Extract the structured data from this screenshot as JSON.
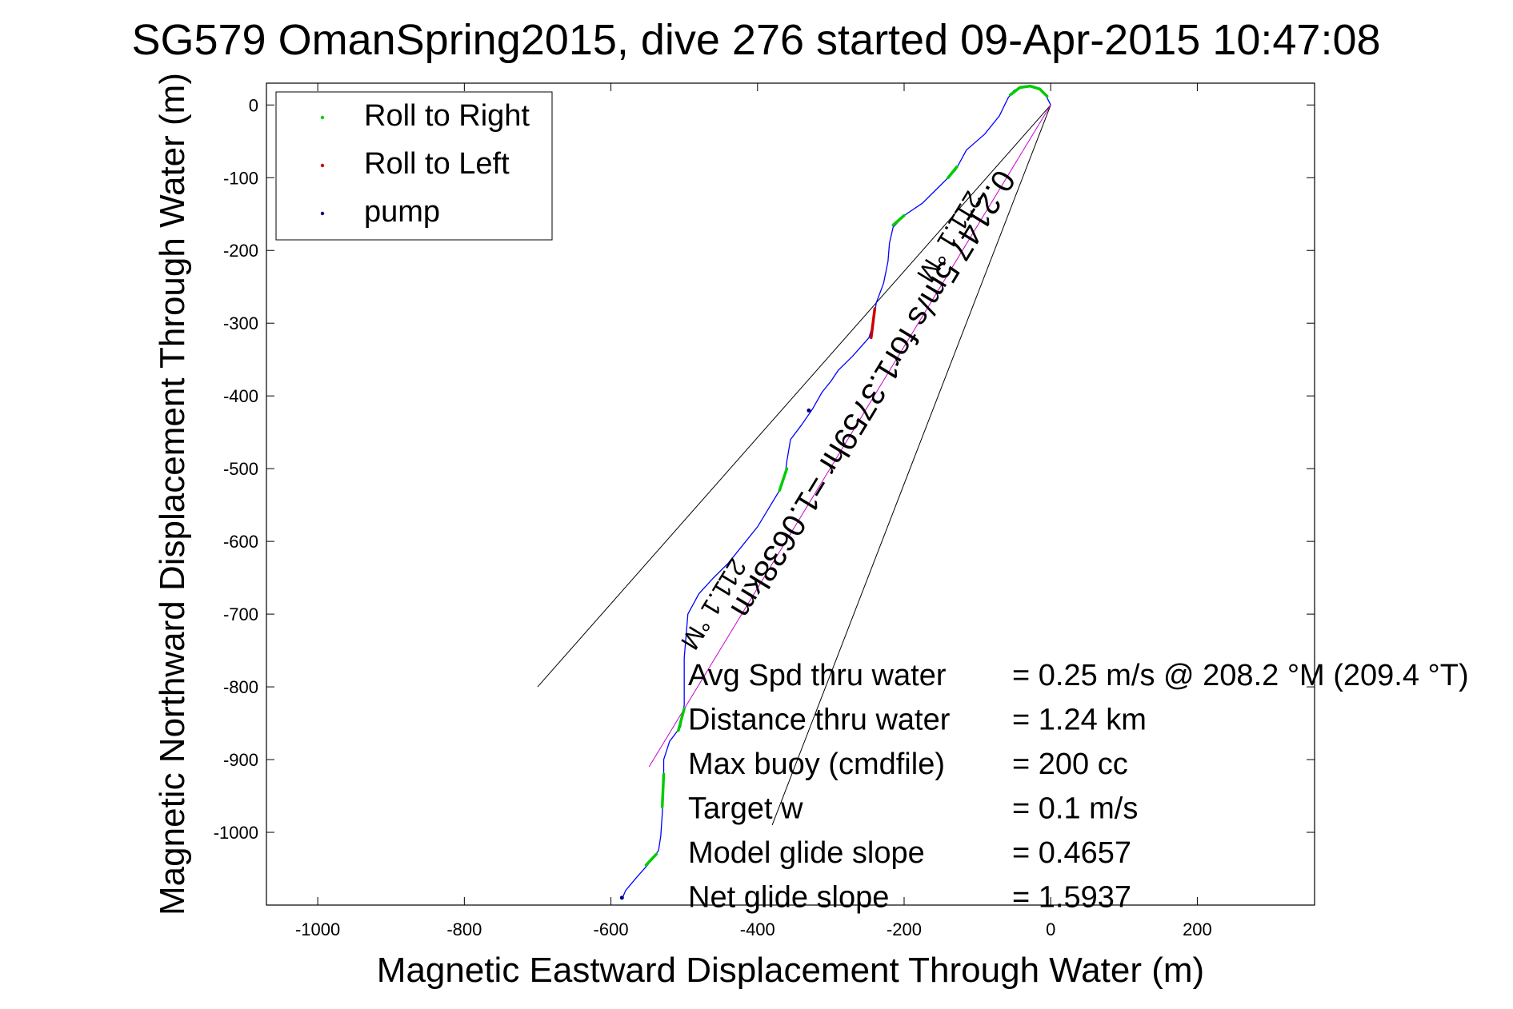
{
  "chart_data": {
    "type": "scatter",
    "title": "SG579 OmanSpring2015, dive 276 started 09-Apr-2015 10:47:08",
    "xlabel": "Magnetic Eastward Displacement Through Water (m)",
    "ylabel": "Magnetic Northward Displacement Through Water (m)",
    "xlim": [
      -1070,
      360
    ],
    "ylim": [
      -1100,
      30
    ],
    "x_ticks": [
      -1000,
      -800,
      -600,
      -400,
      -200,
      0,
      200
    ],
    "y_ticks": [
      0,
      -100,
      -200,
      -300,
      -400,
      -500,
      -600,
      -700,
      -800,
      -900,
      -1000
    ],
    "grid": "off",
    "legend_position": "top-left",
    "legend": [
      {
        "label": "Roll to Right",
        "color": "#00cc00"
      },
      {
        "label": "Roll to Left",
        "color": "#cc0000"
      },
      {
        "label": "pump",
        "color": "#000080"
      }
    ],
    "track_color": "#0000ff",
    "track": [
      [
        0,
        0
      ],
      [
        -8,
        16
      ],
      [
        -20,
        24
      ],
      [
        -35,
        26
      ],
      [
        -50,
        20
      ],
      [
        -58,
        10
      ],
      [
        -70,
        -15
      ],
      [
        -90,
        -40
      ],
      [
        -115,
        -62
      ],
      [
        -130,
        -90
      ],
      [
        -150,
        -110
      ],
      [
        -175,
        -135
      ],
      [
        -200,
        -152
      ],
      [
        -215,
        -168
      ],
      [
        -220,
        -190
      ],
      [
        -222,
        -215
      ],
      [
        -228,
        -245
      ],
      [
        -238,
        -272
      ],
      [
        -242,
        -300
      ],
      [
        -248,
        -320
      ],
      [
        -270,
        -345
      ],
      [
        -290,
        -365
      ],
      [
        -300,
        -380
      ],
      [
        -312,
        -395
      ],
      [
        -325,
        -418
      ],
      [
        -340,
        -440
      ],
      [
        -355,
        -460
      ],
      [
        -360,
        -490
      ],
      [
        -362,
        -505
      ],
      [
        -370,
        -530
      ],
      [
        -385,
        -555
      ],
      [
        -400,
        -580
      ],
      [
        -420,
        -605
      ],
      [
        -440,
        -630
      ],
      [
        -460,
        -650
      ],
      [
        -480,
        -672
      ],
      [
        -495,
        -700
      ],
      [
        -500,
        -760
      ],
      [
        -500,
        -825
      ],
      [
        -505,
        -855
      ],
      [
        -520,
        -875
      ],
      [
        -528,
        -900
      ],
      [
        -528,
        -935
      ],
      [
        -530,
        -975
      ],
      [
        -532,
        -1005
      ],
      [
        -535,
        -1025
      ],
      [
        -550,
        -1045
      ],
      [
        -565,
        -1062
      ],
      [
        -580,
        -1080
      ],
      [
        -585,
        -1092
      ]
    ],
    "roll_right_segments": [
      [
        [
          -5,
          12
        ],
        [
          -15,
          22
        ],
        [
          -28,
          26
        ],
        [
          -42,
          24
        ],
        [
          -55,
          14
        ]
      ],
      [
        [
          -128,
          -85
        ],
        [
          -140,
          -100
        ]
      ],
      [
        [
          -200,
          -152
        ],
        [
          -215,
          -165
        ]
      ],
      [
        [
          -360,
          -500
        ],
        [
          -370,
          -530
        ]
      ],
      [
        [
          -500,
          -830
        ],
        [
          -508,
          -860
        ]
      ],
      [
        [
          -528,
          -920
        ],
        [
          -530,
          -965
        ]
      ],
      [
        [
          -538,
          -1030
        ],
        [
          -552,
          -1045
        ]
      ]
    ],
    "roll_left_segments": [
      [
        [
          -240,
          -280
        ],
        [
          -245,
          -320
        ]
      ]
    ],
    "pump_points": [
      [
        -330,
        -420
      ],
      [
        -585,
        -1090
      ]
    ],
    "heading_lines": [
      {
        "from": [
          0,
          0
        ],
        "to": [
          -700,
          -800
        ],
        "color": "#000000"
      },
      {
        "from": [
          0,
          0
        ],
        "to": [
          -380,
          -990
        ],
        "color": "#000000"
      },
      {
        "from": [
          0,
          0
        ],
        "to": [
          -548,
          -910
        ],
        "color": "#cc00cc"
      }
    ],
    "rotated_labels": [
      {
        "text": "0.2147 5m/s for1.3759hr =1.0638km",
        "at": [
          -255,
          -390
        ]
      },
      {
        "text": "211.1 °M",
        "at": [
          -148,
          -175
        ]
      },
      {
        "text": "211.1 °M",
        "at": [
          -470,
          -680
        ]
      }
    ],
    "annotations": [
      {
        "label": "Avg Spd thru water",
        "value": "=  0.25 m/s @ 208.2 °M (209.4 °T)"
      },
      {
        "label": "Distance thru water",
        "value": "=  1.24 km"
      },
      {
        "label": "Max buoy (cmdfile)",
        "value": "= 200 cc"
      },
      {
        "label": "Target w",
        "value": "= 0.1 m/s"
      },
      {
        "label": "Model glide slope",
        "value": "= 0.4657"
      },
      {
        "label": "Net glide slope",
        "value": "= 1.5937"
      }
    ]
  }
}
